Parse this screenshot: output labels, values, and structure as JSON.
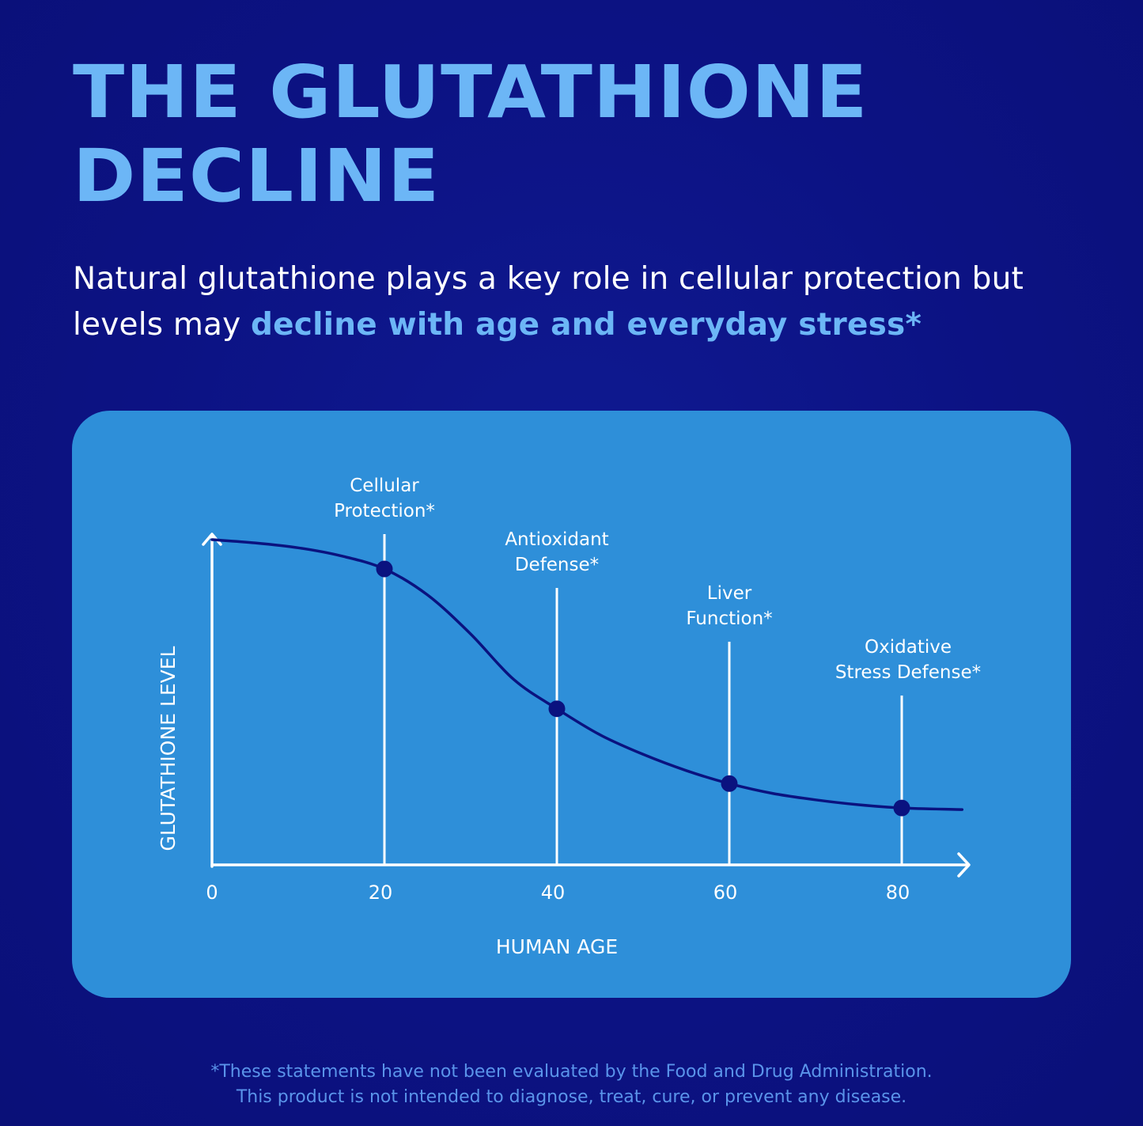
{
  "header": {
    "title_line1": "THE GLUTATHIONE",
    "title_line2": "DECLINE",
    "subtitle_plain": "Natural glutathione plays a key role in cellular protection but levels may ",
    "subtitle_highlight": "decline with age and everyday stress*"
  },
  "colors": {
    "background": "#0c1283",
    "title": "#6cb6f6",
    "card": "#2e8fd9",
    "curve": "#0a127f",
    "axis": "#ffffff",
    "disclaimer": "#5a94ea"
  },
  "chart_data": {
    "type": "line",
    "title": "",
    "xlabel": "HUMAN AGE",
    "ylabel": "GLUTATHIONE LEVEL",
    "xlim": [
      0,
      88
    ],
    "ylim": [
      0,
      1
    ],
    "x_ticks": [
      0,
      20,
      40,
      60,
      80
    ],
    "y_ticks": [],
    "grid": false,
    "curve": {
      "x": [
        0,
        5,
        10,
        15,
        20,
        25,
        30,
        35,
        40,
        45,
        50,
        55,
        60,
        65,
        70,
        75,
        80,
        87
      ],
      "y": [
        1.0,
        0.99,
        0.975,
        0.95,
        0.91,
        0.83,
        0.71,
        0.57,
        0.48,
        0.4,
        0.34,
        0.29,
        0.25,
        0.22,
        0.2,
        0.185,
        0.175,
        0.17
      ]
    },
    "markers": [
      {
        "x": 20,
        "y": 0.91,
        "label_line1": "Cellular",
        "label_line2": "Protection*"
      },
      {
        "x": 40,
        "y": 0.48,
        "label_line1": "Antioxidant",
        "label_line2": "Defense*"
      },
      {
        "x": 60,
        "y": 0.25,
        "label_line1": "Liver",
        "label_line2": "Function*"
      },
      {
        "x": 80,
        "y": 0.175,
        "label_line1": "Oxidative",
        "label_line2": "Stress Defense*"
      }
    ]
  },
  "footer": {
    "disclaimer_line1": "*These statements have not been evaluated by the Food and Drug Administration.",
    "disclaimer_line2": "This product is not intended to diagnose, treat, cure, or prevent any disease."
  }
}
